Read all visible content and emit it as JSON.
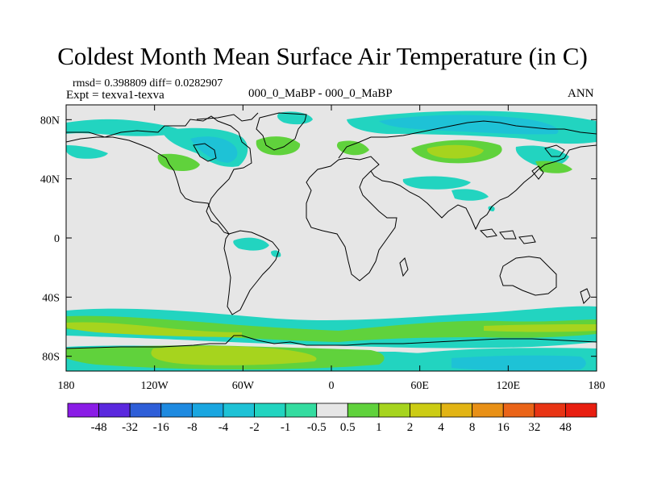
{
  "title": "Coldest Month Mean Surface Air Temperature (in C)",
  "stats": "rmsd= 0.398809  diff= 0.0282907",
  "experiment": "Expt = texva1-texva",
  "period": "000_0_MaBP - 000_0_MaBP",
  "season": "ANN",
  "axes": {
    "lat_ticks": [
      {
        "value": 80,
        "label": "80N"
      },
      {
        "value": 40,
        "label": "40N"
      },
      {
        "value": 0,
        "label": "0"
      },
      {
        "value": -40,
        "label": "40S"
      },
      {
        "value": -80,
        "label": "80S"
      }
    ],
    "lon_ticks": [
      {
        "value": -180,
        "label": "180"
      },
      {
        "value": -120,
        "label": "120W"
      },
      {
        "value": -60,
        "label": "60W"
      },
      {
        "value": 0,
        "label": "0"
      },
      {
        "value": 60,
        "label": "60E"
      },
      {
        "value": 120,
        "label": "120E"
      },
      {
        "value": 180,
        "label": "180"
      }
    ]
  },
  "colorbar": {
    "levels": [
      "-48",
      "-32",
      "-16",
      "-8",
      "-4",
      "-2",
      "-1",
      "-0.5",
      "0.5",
      "1",
      "2",
      "4",
      "8",
      "16",
      "32",
      "48"
    ],
    "colors": [
      "#8a1ce6",
      "#5a28de",
      "#2e5ed8",
      "#1e8ae0",
      "#19a6e0",
      "#1ec2d6",
      "#22d4c0",
      "#34dca0",
      "#e6e6e6",
      "#60d23c",
      "#a6d41e",
      "#cccc14",
      "#e2b414",
      "#e89016",
      "#ea6418",
      "#e83414",
      "#e81e10"
    ]
  },
  "map": {
    "background": "#e6e6e6",
    "lon_range": [
      -180,
      180
    ],
    "lat_range": [
      -90,
      90
    ]
  }
}
